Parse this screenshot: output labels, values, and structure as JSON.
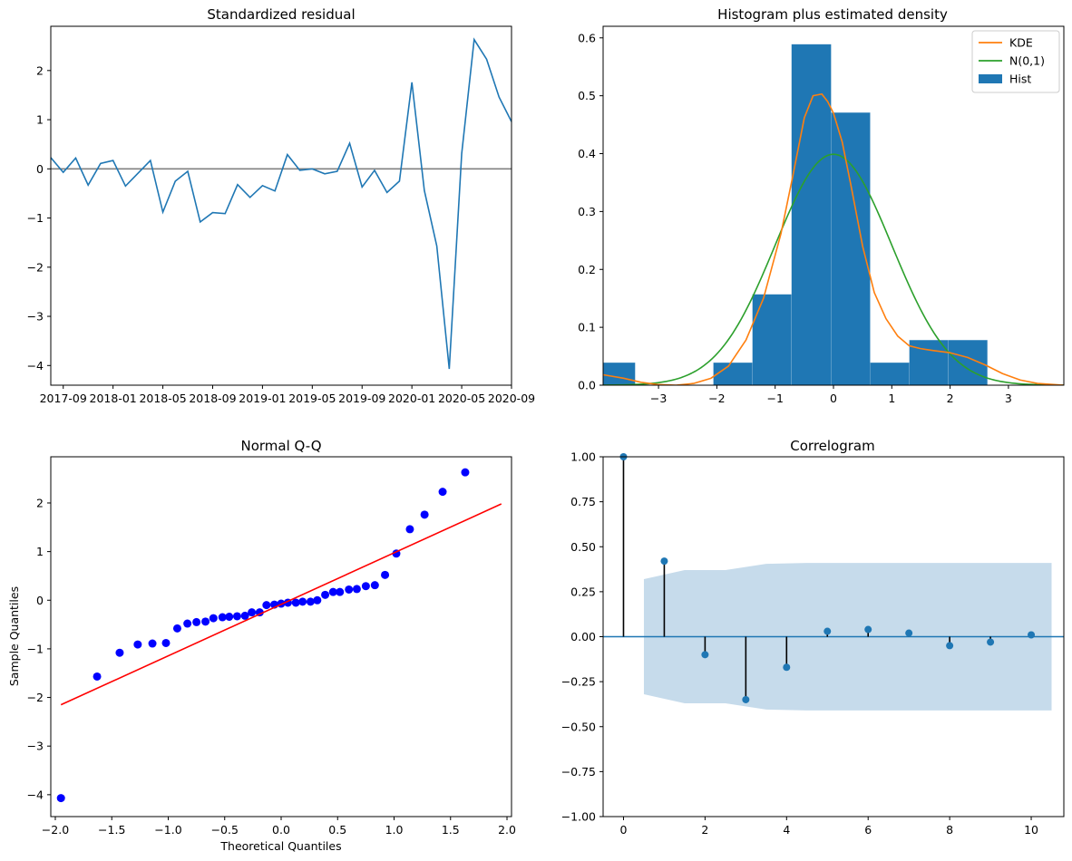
{
  "chart_data": [
    {
      "type": "line",
      "title": "Standardized residual",
      "xlabel": "",
      "ylabel": "",
      "x_ticks": [
        "2017-09",
        "2018-01",
        "2018-05",
        "2018-09",
        "2019-01",
        "2019-05",
        "2019-09",
        "2020-01",
        "2020-05",
        "2020-09"
      ],
      "y_ticks": [
        "−4",
        "−3",
        "−2",
        "−1",
        "0",
        "1",
        "2"
      ],
      "xlim": [
        "2017-08",
        "2020-09"
      ],
      "ylim": [
        -4.4,
        2.9
      ],
      "x": [
        "2017-08",
        "2017-09",
        "2017-10",
        "2017-11",
        "2017-12",
        "2018-01",
        "2018-02",
        "2018-03",
        "2018-04",
        "2018-05",
        "2018-06",
        "2018-07",
        "2018-08",
        "2018-09",
        "2018-10",
        "2018-11",
        "2018-12",
        "2019-01",
        "2019-02",
        "2019-03",
        "2019-04",
        "2019-05",
        "2019-06",
        "2019-07",
        "2019-08",
        "2019-09",
        "2019-10",
        "2019-11",
        "2019-12",
        "2020-01",
        "2020-02",
        "2020-03",
        "2020-04",
        "2020-05",
        "2020-06",
        "2020-07",
        "2020-08",
        "2020-09"
      ],
      "values": [
        0.23,
        -0.07,
        0.22,
        -0.33,
        0.11,
        0.17,
        -0.35,
        -0.09,
        0.17,
        -0.88,
        -0.25,
        -0.05,
        -1.08,
        -0.89,
        -0.91,
        -0.32,
        -0.58,
        -0.34,
        -0.45,
        0.29,
        -0.03,
        0.0,
        -0.1,
        -0.05,
        0.52,
        -0.37,
        -0.03,
        -0.48,
        -0.25,
        1.76,
        -0.44,
        -1.57,
        -4.07,
        0.31,
        2.63,
        2.23,
        1.46,
        0.96
      ],
      "reference_line": 0,
      "colors": {
        "line": "#1f77b4",
        "reference": "#808080"
      }
    },
    {
      "type": "bar",
      "title": "Histogram plus estimated density",
      "xlim": [
        -3.95,
        3.95
      ],
      "ylim": [
        0,
        0.62
      ],
      "x_ticks": [
        "−3",
        "−2",
        "−1",
        "0",
        "1",
        "2",
        "3"
      ],
      "y_ticks": [
        "0.0",
        "0.1",
        "0.2",
        "0.3",
        "0.4",
        "0.5",
        "0.6"
      ],
      "bins": [
        {
          "x0": -4.07,
          "x1": -3.4,
          "value": 0.039
        },
        {
          "x0": -3.4,
          "x1": -2.73,
          "value": 0
        },
        {
          "x0": -2.73,
          "x1": -2.06,
          "value": 0
        },
        {
          "x0": -2.06,
          "x1": -1.39,
          "value": 0.039
        },
        {
          "x0": -1.39,
          "x1": -0.72,
          "value": 0.157
        },
        {
          "x0": -0.72,
          "x1": -0.04,
          "value": 0.589
        },
        {
          "x0": -0.04,
          "x1": 0.63,
          "value": 0.471
        },
        {
          "x0": 0.63,
          "x1": 1.3,
          "value": 0.039
        },
        {
          "x0": 1.3,
          "x1": 1.97,
          "value": 0.078
        },
        {
          "x0": 1.97,
          "x1": 2.64,
          "value": 0.078
        }
      ],
      "kde": {
        "x": [
          -3.95,
          -3.6,
          -3.3,
          -3.0,
          -2.7,
          -2.4,
          -2.1,
          -1.8,
          -1.5,
          -1.2,
          -0.9,
          -0.7,
          -0.5,
          -0.35,
          -0.2,
          -0.1,
          0.0,
          0.15,
          0.3,
          0.5,
          0.7,
          0.9,
          1.1,
          1.3,
          1.5,
          1.7,
          2.0,
          2.3,
          2.6,
          2.9,
          3.2,
          3.5,
          3.95
        ],
        "y": [
          0.018,
          0.012,
          0.005,
          0.001,
          0.0,
          0.003,
          0.012,
          0.033,
          0.078,
          0.15,
          0.262,
          0.36,
          0.462,
          0.5,
          0.503,
          0.49,
          0.47,
          0.42,
          0.345,
          0.24,
          0.16,
          0.115,
          0.085,
          0.068,
          0.063,
          0.06,
          0.056,
          0.048,
          0.035,
          0.02,
          0.009,
          0.003,
          0.0
        ]
      },
      "normal_pdf": {
        "mean": 0,
        "std": 1
      },
      "series": [
        {
          "name": "KDE",
          "color": "#ff7f0e"
        },
        {
          "name": "N(0,1)",
          "color": "#2ca02c"
        },
        {
          "name": "Hist",
          "color": "#1f77b4"
        }
      ],
      "legend": "top-right"
    },
    {
      "type": "scatter",
      "title": "Normal Q-Q",
      "xlabel": "Theoretical Quantiles",
      "ylabel": "Sample Quantiles",
      "xlim": [
        -2.04,
        2.04
      ],
      "ylim": [
        -4.45,
        2.95
      ],
      "x_ticks": [
        "−2.0",
        "−1.5",
        "−1.0",
        "−0.5",
        "0.0",
        "0.5",
        "1.0",
        "1.5",
        "2.0"
      ],
      "y_ticks": [
        "−4",
        "−3",
        "−2",
        "−1",
        "0",
        "1",
        "2"
      ],
      "points": [
        [
          -1.95,
          -4.07
        ],
        [
          -1.63,
          -1.57
        ],
        [
          -1.43,
          -1.08
        ],
        [
          -1.27,
          -0.91
        ],
        [
          -1.14,
          -0.89
        ],
        [
          -1.02,
          -0.88
        ],
        [
          -0.92,
          -0.58
        ],
        [
          -0.83,
          -0.48
        ],
        [
          -0.75,
          -0.45
        ],
        [
          -0.67,
          -0.44
        ],
        [
          -0.6,
          -0.37
        ],
        [
          -0.52,
          -0.35
        ],
        [
          -0.46,
          -0.34
        ],
        [
          -0.39,
          -0.33
        ],
        [
          -0.32,
          -0.32
        ],
        [
          -0.26,
          -0.25
        ],
        [
          -0.19,
          -0.25
        ],
        [
          -0.13,
          -0.1
        ],
        [
          -0.06,
          -0.09
        ],
        [
          0.0,
          -0.07
        ],
        [
          0.06,
          -0.05
        ],
        [
          0.13,
          -0.05
        ],
        [
          0.19,
          -0.03
        ],
        [
          0.26,
          -0.03
        ],
        [
          0.32,
          0.0
        ],
        [
          0.39,
          0.11
        ],
        [
          0.46,
          0.17
        ],
        [
          0.52,
          0.17
        ],
        [
          0.6,
          0.22
        ],
        [
          0.67,
          0.23
        ],
        [
          0.75,
          0.29
        ],
        [
          0.83,
          0.31
        ],
        [
          0.92,
          0.52
        ],
        [
          1.02,
          0.96
        ],
        [
          1.14,
          1.46
        ],
        [
          1.27,
          1.76
        ],
        [
          1.43,
          2.23
        ],
        [
          1.63,
          2.63
        ]
      ],
      "reference_line": {
        "x": [
          -1.95,
          1.95
        ],
        "y": [
          -2.15,
          1.98
        ]
      },
      "colors": {
        "points": "#0000ff",
        "line": "#ff0000"
      }
    },
    {
      "type": "scatter",
      "title": "Correlogram",
      "xlim": [
        -0.5,
        10.8
      ],
      "ylim": [
        -1.0,
        1.0
      ],
      "x_ticks": [
        "0",
        "2",
        "4",
        "6",
        "8",
        "10"
      ],
      "y_ticks": [
        "−1.00",
        "−0.75",
        "−0.50",
        "−0.25",
        "0.00",
        "0.25",
        "0.50",
        "0.75",
        "1.00"
      ],
      "lags": [
        0,
        1,
        2,
        3,
        4,
        5,
        6,
        7,
        8,
        9,
        10
      ],
      "acf": [
        1.0,
        0.42,
        -0.1,
        -0.35,
        -0.17,
        0.03,
        0.04,
        0.02,
        -0.05,
        -0.03,
        0.01
      ],
      "confidence_band": {
        "x": [
          0.5,
          1.5,
          2.5,
          3.5,
          4.5,
          5.5,
          6.5,
          7.5,
          8.5,
          9.5,
          10.5
        ],
        "upper": [
          0.32,
          0.37,
          0.37,
          0.405,
          0.41,
          0.41,
          0.41,
          0.41,
          0.41,
          0.41,
          0.41
        ]
      },
      "colors": {
        "markers": "#1f77b4",
        "stems": "#000000",
        "band": "#c6dbeb",
        "baseline": "#1f77b4"
      }
    }
  ]
}
